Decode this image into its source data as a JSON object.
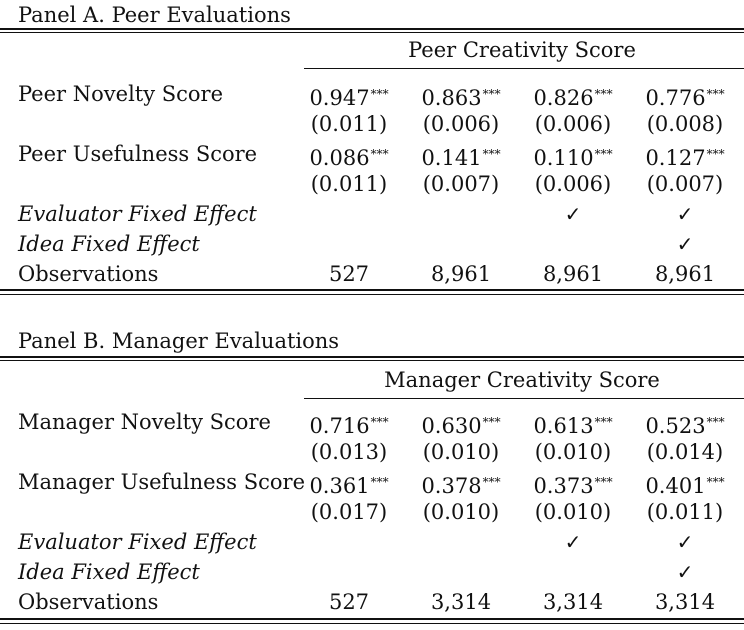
{
  "panels": [
    {
      "title": "Panel A. Peer Evaluations",
      "header": "Peer Creativity Score",
      "rows": [
        {
          "label": "Peer Novelty Score",
          "italic": false,
          "coef": [
            "0.947",
            "0.863",
            "0.826",
            "0.776"
          ],
          "stars": [
            "***",
            "***",
            "***",
            "***"
          ],
          "se": [
            "(0.011)",
            "(0.006)",
            "(0.006)",
            "(0.008)"
          ]
        },
        {
          "label": "Peer Usefulness Score",
          "italic": false,
          "coef": [
            "0.086",
            "0.141",
            "0.110",
            "0.127"
          ],
          "stars": [
            "***",
            "***",
            "***",
            "***"
          ],
          "se": [
            "(0.011)",
            "(0.007)",
            "(0.006)",
            "(0.007)"
          ]
        }
      ],
      "fixed_effects": [
        {
          "label": "Evaluator Fixed Effect",
          "checks": [
            "",
            "",
            "✓",
            "✓"
          ]
        },
        {
          "label": "Idea Fixed Effect",
          "checks": [
            "",
            "",
            "",
            "✓"
          ]
        }
      ],
      "observations": {
        "label": "Observations",
        "values": [
          "527",
          "8,961",
          "8,961",
          "8,961"
        ]
      }
    },
    {
      "title": "Panel B. Manager Evaluations",
      "header": "Manager Creativity Score",
      "rows": [
        {
          "label": "Manager Novelty Score",
          "italic": false,
          "coef": [
            "0.716",
            "0.630",
            "0.613",
            "0.523"
          ],
          "stars": [
            "***",
            "***",
            "***",
            "***"
          ],
          "se": [
            "(0.013)",
            "(0.010)",
            "(0.010)",
            "(0.014)"
          ]
        },
        {
          "label": "Manager Usefulness Score",
          "italic": false,
          "coef": [
            "0.361",
            "0.378",
            "0.373",
            "0.401"
          ],
          "stars": [
            "***",
            "***",
            "***",
            "***"
          ],
          "se": [
            "(0.017)",
            "(0.010)",
            "(0.010)",
            "(0.011)"
          ]
        }
      ],
      "fixed_effects": [
        {
          "label": "Evaluator Fixed Effect",
          "checks": [
            "",
            "",
            "✓",
            "✓"
          ]
        },
        {
          "label": "Idea Fixed Effect",
          "checks": [
            "",
            "",
            "",
            "✓"
          ]
        }
      ],
      "observations": {
        "label": "Observations",
        "values": [
          "527",
          "3,314",
          "3,314",
          "3,314"
        ]
      }
    }
  ]
}
